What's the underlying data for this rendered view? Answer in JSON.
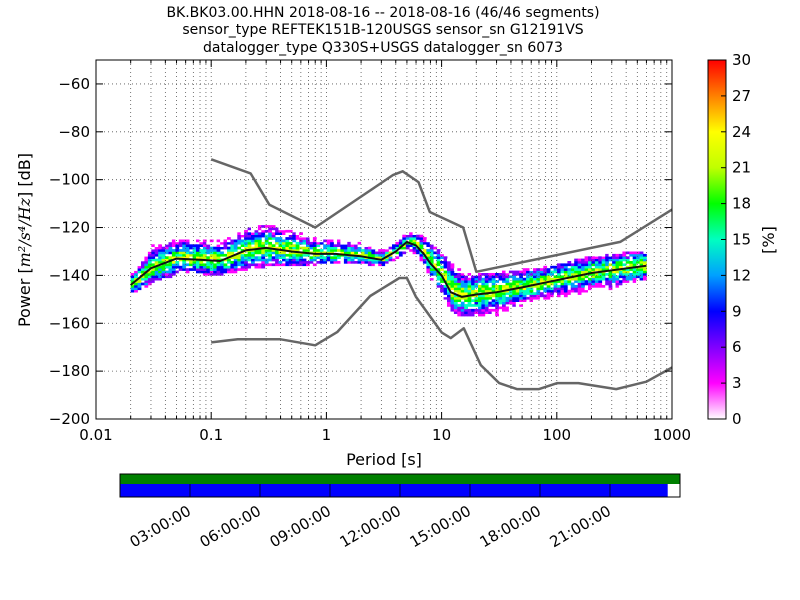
{
  "colors": {
    "noise_model": "#666666",
    "mean_curve": "#111111",
    "gap_bar_top": "#008000",
    "gap_bar_bottom": "#0000ff",
    "grid": "#555555"
  },
  "timeline": {
    "labels": [
      "03:00:00",
      "06:00:00",
      "09:00:00",
      "12:00:00",
      "15:00:00",
      "18:00:00",
      "21:00:00"
    ],
    "coverage_fraction": 0.978
  },
  "chart_data": {
    "type": "heatmap",
    "title": [
      "BK.BK03.00.HHN   2018-08-16 -- 2018-08-16  (46/46 segments)",
      "sensor_type REFTEK151B-120USGS sensor_sn G12191VS",
      "datalogger_type Q330S+USGS datalogger_sn 6073"
    ],
    "xlabel": "Period [s]",
    "ylabel_prefix": "Power [",
    "ylabel_unit": "m²/s⁴/Hz",
    "ylabel_suffix": "] [dB]",
    "xscale": "log",
    "xlim": [
      0.01,
      1000
    ],
    "ylim": [
      -200,
      -50
    ],
    "xticks": [
      0.01,
      0.1,
      1,
      10,
      100,
      1000
    ],
    "xtick_labels": [
      "0.01",
      "0.1",
      "1",
      "10",
      "100",
      "1000"
    ],
    "yticks": [
      -200,
      -180,
      -160,
      -140,
      -120,
      -100,
      -80,
      -60
    ],
    "ytick_labels": [
      "−200",
      "−180",
      "−160",
      "−140",
      "−120",
      "−100",
      "−80",
      "−60"
    ],
    "grid": true,
    "colorbar": {
      "label": "[%]",
      "range": [
        0,
        30
      ],
      "ticks": [
        0,
        3,
        6,
        9,
        12,
        15,
        18,
        21,
        24,
        27,
        30
      ],
      "tick_labels": [
        "0",
        "3",
        "6",
        "9",
        "12",
        "15",
        "18",
        "21",
        "24",
        "27",
        "30"
      ],
      "colormap": [
        "#ffffff",
        "#ff00ff",
        "#8000ff",
        "#0000ff",
        "#00a0ff",
        "#00ffc0",
        "#00ff00",
        "#c0ff00",
        "#ffff00",
        "#ff8000",
        "#ff0000"
      ]
    },
    "noise_model_high": {
      "x": [
        0.1,
        0.22,
        0.32,
        0.8,
        3.8,
        4.6,
        6.3,
        7.9,
        15.4,
        20,
        354.8,
        1000
      ],
      "y": [
        -91.5,
        -97.4,
        -110.5,
        -120,
        -98,
        -96.5,
        -101,
        -113.5,
        -120,
        -138.5,
        -126,
        -112.5
      ]
    },
    "noise_model_low": {
      "x": [
        0.1,
        0.17,
        0.4,
        0.8,
        1.24,
        2.4,
        4.3,
        5,
        6,
        10,
        12,
        15.6,
        21.9,
        31.6,
        45,
        70,
        101,
        154,
        328,
        600,
        1000
      ],
      "y": [
        -168,
        -166.7,
        -166.7,
        -169.2,
        -163.7,
        -148.6,
        -141.1,
        -141.1,
        -149,
        -163.8,
        -166.2,
        -162.1,
        -177.5,
        -185,
        -187.5,
        -187.5,
        -185,
        -185,
        -187.5,
        -184.4,
        -178.5
      ]
    },
    "mean_psd": {
      "x": [
        0.02,
        0.03,
        0.05,
        0.08,
        0.12,
        0.2,
        0.3,
        0.5,
        0.8,
        1.2,
        2,
        3,
        4,
        5,
        6,
        7,
        8,
        10,
        12,
        15,
        20,
        30,
        50,
        100,
        200,
        600
      ],
      "y": [
        -144,
        -137,
        -133,
        -133.5,
        -134,
        -129.5,
        -128.5,
        -130,
        -131,
        -131,
        -132,
        -133.5,
        -130,
        -126,
        -127.5,
        -131,
        -135,
        -140,
        -147,
        -149,
        -148,
        -147,
        -145,
        -142,
        -139,
        -136
      ]
    },
    "density_band": {
      "x": [
        0.02,
        0.03,
        0.05,
        0.08,
        0.12,
        0.2,
        0.3,
        0.5,
        0.8,
        1.2,
        2,
        3,
        4,
        5,
        6,
        7,
        8,
        10,
        12,
        15,
        20,
        30,
        50,
        100,
        200,
        600
      ],
      "upper": [
        -140,
        -129,
        -126,
        -126,
        -127,
        -122,
        -120,
        -123,
        -126,
        -126,
        -128,
        -131,
        -127,
        -123,
        -124,
        -126,
        -128,
        -132,
        -137,
        -140,
        -140,
        -140,
        -139,
        -137,
        -133,
        -131
      ],
      "lower": [
        -147,
        -143,
        -139,
        -139,
        -140,
        -137,
        -136,
        -136,
        -135,
        -134,
        -135,
        -136,
        -133,
        -129,
        -131,
        -136,
        -142,
        -148,
        -155,
        -157,
        -157,
        -156,
        -152,
        -149,
        -146,
        -143
      ]
    }
  }
}
